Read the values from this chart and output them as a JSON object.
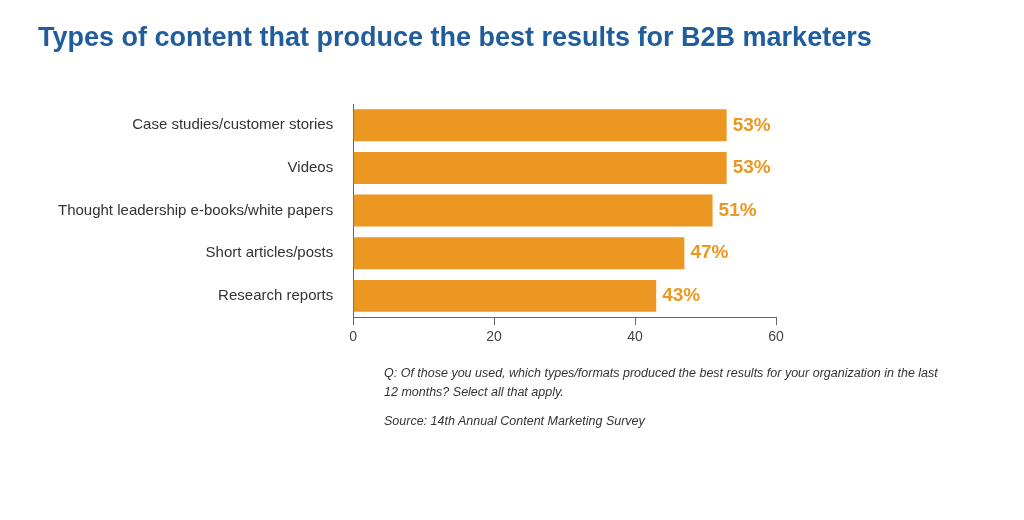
{
  "chart_data": {
    "type": "bar",
    "orientation": "horizontal",
    "title": "Types of content that produce the best results for B2B marketers",
    "categories": [
      "Case studies/customer stories",
      "Videos",
      "Thought leadership e-books/white papers",
      "Short articles/posts",
      "Research reports"
    ],
    "values": [
      53,
      53,
      51,
      47,
      43
    ],
    "color": "#eb9722",
    "value_labels": [
      "53%",
      "53%",
      "51%",
      "47%",
      "43%"
    ],
    "xlim": [
      0,
      60
    ],
    "xticks": [
      0,
      20,
      40,
      60
    ],
    "grid": false,
    "legend": false,
    "annotations": [
      "Q: Of those you used, which types/formats produced the best results for your organization in the last 12 months? Select all that apply.",
      "Source: 14th Annual Content Marketing Survey"
    ]
  }
}
